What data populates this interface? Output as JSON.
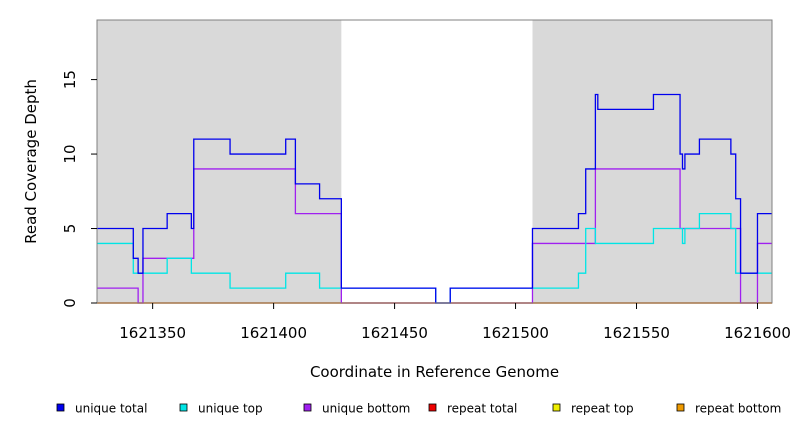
{
  "chart_data": {
    "type": "line",
    "title": "",
    "xlabel": "Coordinate in Reference Genome",
    "ylabel": "Read Coverage Depth",
    "xlim": [
      1621327,
      1621606
    ],
    "ylim": [
      0,
      19
    ],
    "xticks": [
      1621350,
      1621400,
      1621450,
      1621500,
      1621550,
      1621600
    ],
    "yticks": [
      0,
      5,
      10,
      15
    ],
    "grid": false,
    "legend_position": "bottom",
    "shaded_regions": [
      {
        "x0": 1621327,
        "x1": 1621428,
        "color": "#d9d9d9"
      },
      {
        "x0": 1621507,
        "x1": 1621606,
        "color": "#d9d9d9"
      }
    ],
    "series": [
      {
        "name": "unique total",
        "color": "#0000ee",
        "steps": [
          [
            1621327,
            5
          ],
          [
            1621342,
            3
          ],
          [
            1621344,
            2
          ],
          [
            1621346,
            5
          ],
          [
            1621356,
            6
          ],
          [
            1621366,
            5
          ],
          [
            1621367,
            11
          ],
          [
            1621382,
            10
          ],
          [
            1621405,
            11
          ],
          [
            1621409,
            8
          ],
          [
            1621419,
            7
          ],
          [
            1621428,
            1
          ],
          [
            1621467,
            0
          ],
          [
            1621473,
            1
          ],
          [
            1621507,
            5
          ],
          [
            1621526,
            6
          ],
          [
            1621529,
            9
          ],
          [
            1621533,
            14
          ],
          [
            1621534,
            13
          ],
          [
            1621557,
            14
          ],
          [
            1621568,
            10
          ],
          [
            1621569,
            9
          ],
          [
            1621570,
            10
          ],
          [
            1621576,
            11
          ],
          [
            1621589,
            10
          ],
          [
            1621591,
            7
          ],
          [
            1621593,
            2
          ],
          [
            1621600,
            6
          ],
          [
            1621606,
            6
          ]
        ]
      },
      {
        "name": "unique top",
        "color": "#00e5e5",
        "steps": [
          [
            1621327,
            4
          ],
          [
            1621342,
            2
          ],
          [
            1621356,
            3
          ],
          [
            1621366,
            2
          ],
          [
            1621382,
            1
          ],
          [
            1621405,
            2
          ],
          [
            1621419,
            1
          ],
          [
            1621428,
            1
          ],
          [
            1621467,
            0
          ],
          [
            1621473,
            1
          ],
          [
            1621507,
            1
          ],
          [
            1621526,
            2
          ],
          [
            1621529,
            5
          ],
          [
            1621533,
            4
          ],
          [
            1621557,
            5
          ],
          [
            1621569,
            4
          ],
          [
            1621570,
            5
          ],
          [
            1621576,
            6
          ],
          [
            1621589,
            5
          ],
          [
            1621591,
            2
          ],
          [
            1621606,
            2
          ]
        ]
      },
      {
        "name": "unique bottom",
        "color": "#a020f0",
        "steps": [
          [
            1621327,
            1
          ],
          [
            1621344,
            0
          ],
          [
            1621346,
            3
          ],
          [
            1621367,
            9
          ],
          [
            1621409,
            6
          ],
          [
            1621428,
            0
          ],
          [
            1621507,
            4
          ],
          [
            1621533,
            9
          ],
          [
            1621568,
            5
          ],
          [
            1621593,
            0
          ],
          [
            1621600,
            4
          ],
          [
            1621606,
            4
          ]
        ]
      },
      {
        "name": "repeat total",
        "color": "#ee0000",
        "steps": [
          [
            1621327,
            0
          ],
          [
            1621606,
            0
          ]
        ]
      },
      {
        "name": "repeat top",
        "color": "#eeee00",
        "steps": [
          [
            1621327,
            0
          ],
          [
            1621606,
            0
          ]
        ]
      },
      {
        "name": "repeat bottom",
        "color": "#ee9a00",
        "steps": [
          [
            1621327,
            0
          ],
          [
            1621606,
            0
          ]
        ]
      }
    ]
  }
}
